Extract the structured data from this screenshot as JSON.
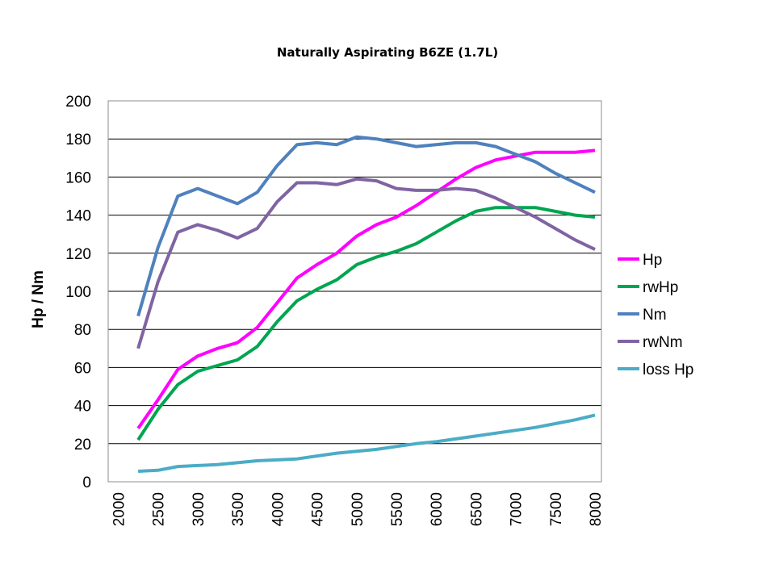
{
  "chart_data": {
    "type": "line",
    "title": "Naturally Aspirating B6ZE (1.7L)",
    "xlabel": "",
    "ylabel": "Hp / Nm",
    "xlim": [
      2000,
      8000
    ],
    "ylim": [
      0,
      200
    ],
    "x_ticks": [
      "2000",
      "2500",
      "3000",
      "3500",
      "4000",
      "4500",
      "5000",
      "5500",
      "6000",
      "6500",
      "7000",
      "7500",
      "8000"
    ],
    "y_ticks": [
      "0",
      "20",
      "40",
      "60",
      "80",
      "100",
      "120",
      "140",
      "160",
      "180",
      "200"
    ],
    "grid": true,
    "legend_position": "right",
    "x": [
      2250,
      2500,
      2750,
      3000,
      3250,
      3500,
      3750,
      4000,
      4250,
      4500,
      4750,
      5000,
      5250,
      5500,
      5750,
      6000,
      6250,
      6500,
      6750,
      7000,
      7250,
      7500,
      7750,
      8000
    ],
    "series": [
      {
        "name": "Hp",
        "color": "#ff00ff",
        "values": [
          28,
          43,
          59,
          66,
          70,
          73,
          81,
          94,
          107,
          114,
          120,
          129,
          135,
          139,
          145,
          152,
          159,
          165,
          169,
          171,
          173,
          173,
          173,
          174
        ]
      },
      {
        "name": "rwHp",
        "color": "#00a550",
        "values": [
          22,
          38,
          51,
          58,
          61,
          64,
          71,
          84,
          95,
          101,
          106,
          114,
          118,
          121,
          125,
          131,
          137,
          142,
          144,
          144,
          144,
          142,
          140,
          139
        ]
      },
      {
        "name": "Nm",
        "color": "#4f81bd",
        "values": [
          87,
          123,
          150,
          154,
          150,
          146,
          152,
          166,
          177,
          178,
          177,
          181,
          180,
          178,
          176,
          177,
          178,
          178,
          176,
          172,
          168,
          162,
          157,
          152
        ]
      },
      {
        "name": "rwNm",
        "color": "#8064a2",
        "values": [
          70,
          105,
          131,
          135,
          132,
          128,
          133,
          147,
          157,
          157,
          156,
          159,
          158,
          154,
          153,
          153,
          154,
          153,
          149,
          144,
          139,
          133,
          127,
          122
        ]
      },
      {
        "name": "loss Hp",
        "color": "#4bacc6",
        "values": [
          5.5,
          6,
          8,
          8.5,
          9,
          10,
          11,
          11.5,
          12,
          13.5,
          15,
          16,
          17,
          18.5,
          20,
          21,
          22.5,
          24,
          25.5,
          27,
          28.5,
          30.5,
          32.5,
          35
        ]
      }
    ]
  }
}
